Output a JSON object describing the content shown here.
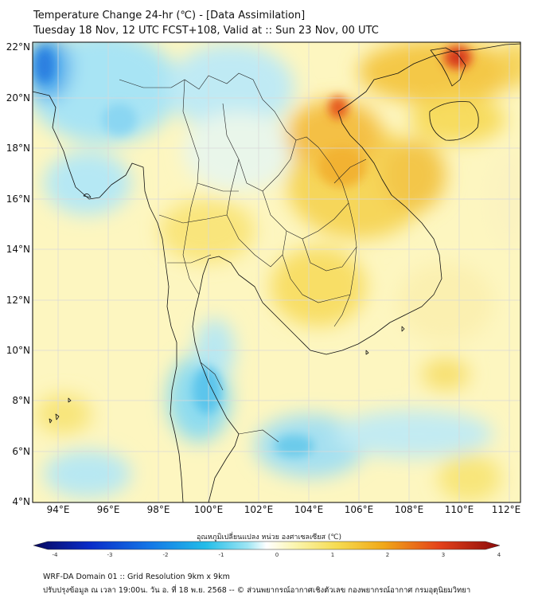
{
  "header": {
    "title": "Temperature Change 24-hr (℃) - [Data Assimilation]",
    "subtitle": "Tuesday 18 Nov, 12 UTC FCST+108, Valid at :: Sun 23 Nov, 00 UTC"
  },
  "map": {
    "lat_labels": [
      "22°N",
      "20°N",
      "18°N",
      "16°N",
      "14°N",
      "12°N",
      "10°N",
      "8°N",
      "6°N",
      "4°N"
    ],
    "lon_labels": [
      "94°E",
      "96°E",
      "98°E",
      "100°E",
      "102°E",
      "104°E",
      "106°E",
      "108°E",
      "110°E",
      "112°E"
    ],
    "lat_range": [
      4,
      22
    ],
    "lon_range": [
      93,
      112.5
    ]
  },
  "colorbar": {
    "label": "อุณหภูมิเปลี่ยนแปลง หน่วย องศาเซลเซียส (℃)",
    "ticks": [
      "-4",
      "-3",
      "-2",
      "-1",
      "0",
      "1",
      "2",
      "3",
      "4"
    ],
    "range": [
      -4,
      4
    ],
    "colors": [
      "#08085e",
      "#0a2cc8",
      "#1477e6",
      "#23bde8",
      "#9fe6f4",
      "#ffffff",
      "#fbf5b0",
      "#f6dc52",
      "#f0a818",
      "#e4421a",
      "#8b0a0a"
    ]
  },
  "footer": {
    "line1": "WRF-DA Domain 01 :: Grid Resolution 9km x 9km",
    "line2": "ปรับปรุงข้อมูล ณ เวลา 19:00น. วัน อ. ที่ 18 พ.ย. 2568 -- © ส่วนพยากรณ์อากาศเชิงตัวเลข กองพยากรณ์อากาศ กรมอุตุนิยมวิทยา"
  }
}
